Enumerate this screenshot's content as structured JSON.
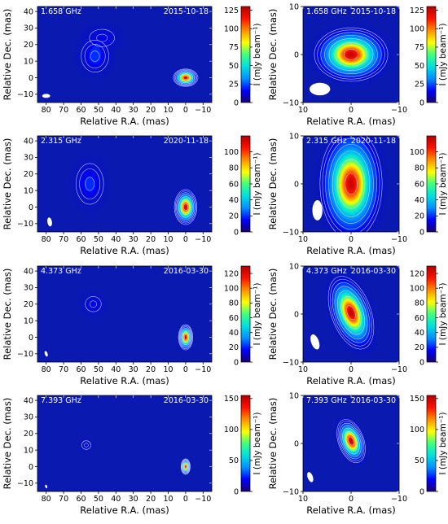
{
  "colors": {
    "background": "#0a1ab0",
    "contour": "#d8e0ff",
    "beam": "#ffffff",
    "label_text": "#ffffff",
    "colormap": [
      "#1a0070",
      "#0000ff",
      "#0090ff",
      "#00e0e0",
      "#40ff80",
      "#ffff00",
      "#ff9000",
      "#ff1000",
      "#b00000"
    ]
  },
  "chart_data": [
    {
      "id": "p1-wide",
      "type": "heatmap",
      "freq": "1.658 GHz",
      "date": "2015-10-18",
      "xlabel": "Relative R.A. (mas)",
      "ylabel": "Relative Dec. (mas)",
      "xlim": [
        85,
        -15
      ],
      "ylim": [
        -15,
        43
      ],
      "xticks": [
        "80",
        "70",
        "60",
        "50",
        "40",
        "30",
        "20",
        "10",
        "0",
        "−10"
      ],
      "yticks": [
        "−10",
        "0",
        "10",
        "20",
        "30",
        "40"
      ],
      "beam": {
        "x": 80,
        "y": -11,
        "bmaj": 2.4,
        "bmin": 4.6,
        "pa": 0
      },
      "colorbar": {
        "label": "I (mJy beam⁻¹)",
        "vmax": 130,
        "ticks": [
          0,
          25,
          50,
          75,
          100,
          125
        ]
      },
      "components": [
        {
          "x": 0,
          "y": 0,
          "peak": 125,
          "sx": 2.4,
          "sy": 1.8,
          "pa": 0
        },
        {
          "x": 52,
          "y": 13,
          "peak": 7,
          "sx": 4.5,
          "sy": 5.5,
          "pa": 0
        },
        {
          "x": 48,
          "y": 24,
          "peak": 4,
          "sx": 5.5,
          "sy": 4,
          "pa": 0
        }
      ]
    },
    {
      "id": "p1-zoom",
      "type": "heatmap",
      "freq": "1.658 GHz",
      "date": "2015-10-18",
      "xlabel": "Relative R.A. (mas)",
      "ylabel": "Relative Dec. (mas)",
      "xlim": [
        10,
        -10
      ],
      "ylim": [
        -10,
        10
      ],
      "xticks": [
        "10",
        "0",
        "−10"
      ],
      "yticks": [
        "−10",
        "0",
        "10"
      ],
      "beam": {
        "x": 6.5,
        "y": -7.2,
        "bmaj": 4.3,
        "bmin": 2.6,
        "pa": 90
      },
      "colorbar": {
        "label": "I (mJy beam⁻¹)",
        "vmax": 130,
        "ticks": [
          0,
          25,
          50,
          75,
          100,
          125
        ]
      },
      "components": [
        {
          "x": 0,
          "y": 0,
          "peak": 125,
          "sx": 2.6,
          "sy": 1.9,
          "pa": 0
        }
      ]
    },
    {
      "id": "p2-wide",
      "type": "heatmap",
      "freq": "2.315 GHz",
      "date": "2020-11-18",
      "xlabel": "Relative R.A. (mas)",
      "ylabel": "Relative Dec. (mas)",
      "xlim": [
        85,
        -15
      ],
      "ylim": [
        -15,
        43
      ],
      "xticks": [
        "80",
        "70",
        "60",
        "50",
        "40",
        "30",
        "20",
        "10",
        "0",
        "−10"
      ],
      "yticks": [
        "−10",
        "0",
        "10",
        "20",
        "30",
        "40"
      ],
      "beam": {
        "x": 78,
        "y": -9,
        "bmaj": 5.5,
        "bmin": 2.6,
        "pa": 10
      },
      "colorbar": {
        "label": "I (mJy beam⁻¹)",
        "vmax": 120,
        "ticks": [
          0,
          20,
          40,
          60,
          80,
          100
        ]
      },
      "components": [
        {
          "x": 0,
          "y": 0,
          "peak": 115,
          "sx": 2.2,
          "sy": 3.6,
          "pa": 0
        },
        {
          "x": 55,
          "y": 14,
          "peak": 6,
          "sx": 4.5,
          "sy": 7,
          "pa": 0
        }
      ]
    },
    {
      "id": "p2-zoom",
      "type": "heatmap",
      "freq": "2.315 GHz",
      "date": "2020-11-18",
      "xlabel": "Relative R.A. (mas)",
      "ylabel": "Relative Dec. (mas)",
      "xlim": [
        10,
        -10
      ],
      "ylim": [
        -10,
        10
      ],
      "xticks": [
        "10",
        "0",
        "−10"
      ],
      "yticks": [
        "−10",
        "0",
        "10"
      ],
      "beam": {
        "x": 7,
        "y": -5.5,
        "bmaj": 4.2,
        "bmin": 2.1,
        "pa": 0
      },
      "colorbar": {
        "label": "I (mJy beam⁻¹)",
        "vmax": 120,
        "ticks": [
          0,
          20,
          40,
          60,
          80,
          100
        ]
      },
      "components": [
        {
          "x": 0,
          "y": 0,
          "peak": 115,
          "sx": 2.2,
          "sy": 3.9,
          "pa": 0
        }
      ]
    },
    {
      "id": "p3-wide",
      "type": "heatmap",
      "freq": "4.373 GHz",
      "date": "2016-03-30",
      "xlabel": "Relative R.A. (mas)",
      "ylabel": "Relative Dec. (mas)",
      "xlim": [
        85,
        -15
      ],
      "ylim": [
        -15,
        43
      ],
      "xticks": [
        "80",
        "70",
        "60",
        "50",
        "40",
        "30",
        "20",
        "10",
        "0",
        "−10"
      ],
      "yticks": [
        "−10",
        "0",
        "10",
        "20",
        "30",
        "40"
      ],
      "beam": {
        "x": 80,
        "y": -10,
        "bmaj": 3.5,
        "bmin": 1.6,
        "pa": 20
      },
      "colorbar": {
        "label": "I (mJy beam⁻¹)",
        "vmax": 130,
        "ticks": [
          0,
          20,
          40,
          60,
          80,
          100,
          120
        ]
      },
      "components": [
        {
          "x": 0,
          "y": 0,
          "peak": 125,
          "sx": 1.4,
          "sy": 2.6,
          "pa": 0
        },
        {
          "x": 53,
          "y": 20,
          "peak": 4,
          "sx": 3.5,
          "sy": 3.5,
          "pa": 0
        }
      ]
    },
    {
      "id": "p3-zoom",
      "type": "heatmap",
      "freq": "4.373 GHz",
      "date": "2016-03-30",
      "xlabel": "Relative R.A. (mas)",
      "ylabel": "Relative Dec. (mas)",
      "xlim": [
        10,
        -10
      ],
      "ylim": [
        -10,
        10
      ],
      "xticks": [
        "10",
        "0",
        "−10"
      ],
      "yticks": [
        "−10",
        "0",
        "10"
      ],
      "beam": {
        "x": 7.5,
        "y": -5.8,
        "bmaj": 3.3,
        "bmin": 1.6,
        "pa": 20
      },
      "colorbar": {
        "label": "I (mJy beam⁻¹)",
        "vmax": 130,
        "ticks": [
          0,
          20,
          40,
          60,
          80,
          100,
          120
        ]
      },
      "components": [
        {
          "x": 0,
          "y": 0.3,
          "peak": 125,
          "sx": 1.4,
          "sy": 2.7,
          "pa": 20
        }
      ]
    },
    {
      "id": "p4-wide",
      "type": "heatmap",
      "freq": "7.393 GHz",
      "date": "2016-03-30",
      "xlabel": "Relative R.A. (mas)",
      "ylabel": "Relative Dec. (mas)",
      "xlim": [
        85,
        -15
      ],
      "ylim": [
        -15,
        43
      ],
      "xticks": [
        "80",
        "70",
        "60",
        "50",
        "40",
        "30",
        "20",
        "10",
        "0",
        "−10"
      ],
      "yticks": [
        "−10",
        "0",
        "10",
        "20",
        "30",
        "40"
      ],
      "beam": {
        "x": 80,
        "y": -12,
        "bmaj": 2.2,
        "bmin": 1.1,
        "pa": 20
      },
      "colorbar": {
        "label": "I (mJy beam⁻¹)",
        "vmax": 155,
        "ticks": [
          0,
          50,
          100,
          150
        ]
      },
      "components": [
        {
          "x": 0,
          "y": 0,
          "peak": 150,
          "sx": 0.9,
          "sy": 1.6,
          "pa": 0
        },
        {
          "x": 57,
          "y": 13,
          "peak": 3,
          "sx": 2,
          "sy": 2,
          "pa": 0
        }
      ]
    },
    {
      "id": "p4-zoom",
      "type": "heatmap",
      "freq": "7.393 GHz",
      "date": "2016-03-30",
      "xlabel": "Relative R.A. (mas)",
      "ylabel": "Relative Dec. (mas)",
      "xlim": [
        10,
        -10
      ],
      "ylim": [
        -10,
        10
      ],
      "xticks": [
        "10",
        "0",
        "−10"
      ],
      "yticks": [
        "−10",
        "0",
        "10"
      ],
      "beam": {
        "x": 8.5,
        "y": -7,
        "bmaj": 2.2,
        "bmin": 1.1,
        "pa": 20
      },
      "colorbar": {
        "label": "I (mJy beam⁻¹)",
        "vmax": 155,
        "ticks": [
          0,
          50,
          100,
          150
        ]
      },
      "components": [
        {
          "x": 0,
          "y": 0.5,
          "peak": 150,
          "sx": 0.9,
          "sy": 1.6,
          "pa": 20
        }
      ]
    }
  ]
}
